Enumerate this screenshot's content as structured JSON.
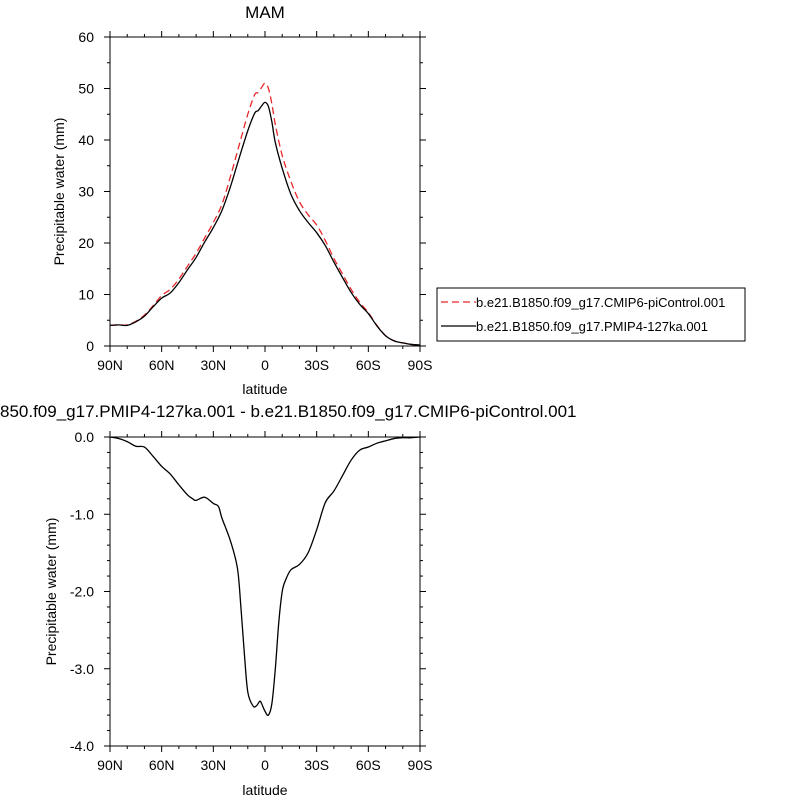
{
  "chart_data": [
    {
      "type": "line",
      "title": "MAM",
      "xlabel": "latitude",
      "ylabel": "Precipitable water (mm)",
      "xlim": [
        90,
        -90
      ],
      "ylim": [
        0,
        60
      ],
      "grid": false,
      "legend_position": "right",
      "x_tick_values": [
        90,
        60,
        30,
        0,
        -30,
        -60,
        -90
      ],
      "x_tick_labels": [
        "90N",
        "60N",
        "30N",
        "0",
        "30S",
        "60S",
        "90S"
      ],
      "y_tick_values": [
        0,
        10,
        20,
        30,
        40,
        50,
        60
      ],
      "y_tick_labels": [
        "0",
        "10",
        "20",
        "30",
        "40",
        "50",
        "60"
      ],
      "series": [
        {
          "name": "b.e21.B1850.f09_g17.CMIP6-piControl.001",
          "color": "#e8282b",
          "dash": "dashed",
          "x": [
            90,
            85,
            80,
            75,
            70,
            65,
            60,
            55,
            50,
            45,
            40,
            35,
            30,
            25,
            20,
            15,
            10,
            6,
            4,
            2,
            0,
            -2,
            -4,
            -6,
            -10,
            -15,
            -20,
            -25,
            -30,
            -35,
            -40,
            -45,
            -50,
            -55,
            -60,
            -65,
            -70,
            -75,
            -80,
            -85,
            -90
          ],
          "y": [
            4.0,
            4.1,
            4.1,
            4.8,
            6.0,
            7.8,
            9.8,
            11.0,
            13.0,
            15.5,
            18.0,
            21.0,
            24.0,
            27.5,
            33.0,
            39.0,
            45.0,
            48.8,
            49.2,
            50.2,
            51.0,
            50.0,
            47.0,
            43.0,
            37.0,
            32.0,
            28.0,
            25.5,
            23.5,
            20.5,
            17.0,
            14.0,
            11.0,
            8.5,
            6.5,
            4.0,
            2.0,
            1.0,
            0.6,
            0.3,
            0.2
          ]
        },
        {
          "name": "b.e21.B1850.f09_g17.PMIP4-127ka.001",
          "color": "#000000",
          "dash": "solid",
          "x": [
            90,
            85,
            80,
            75,
            70,
            65,
            60,
            55,
            50,
            45,
            40,
            35,
            30,
            25,
            20,
            15,
            10,
            6,
            4,
            2,
            0,
            -2,
            -4,
            -6,
            -10,
            -15,
            -20,
            -25,
            -30,
            -35,
            -40,
            -45,
            -50,
            -55,
            -60,
            -65,
            -70,
            -75,
            -80,
            -85,
            -90
          ],
          "y": [
            4.0,
            4.1,
            4.0,
            4.7,
            5.8,
            7.6,
            9.3,
            10.3,
            12.3,
            14.8,
            17.2,
            20.2,
            23.0,
            26.3,
            31.0,
            36.5,
            41.8,
            45.2,
            45.7,
            46.6,
            47.3,
            46.5,
            43.5,
            39.5,
            34.5,
            29.5,
            26.3,
            24.0,
            22.0,
            19.5,
            16.3,
            13.3,
            10.4,
            8.1,
            6.3,
            3.9,
            2.0,
            1.0,
            0.6,
            0.3,
            0.2
          ]
        }
      ]
    },
    {
      "type": "line",
      "title": "850.f09_g17.PMIP4-127ka.001 - b.e21.B1850.f09_g17.CMIP6-piControl.001",
      "xlabel": "latitude",
      "ylabel": "Precipitable water (mm)",
      "xlim": [
        90,
        -90
      ],
      "ylim": [
        -4.0,
        0.0
      ],
      "grid": false,
      "x_tick_values": [
        90,
        60,
        30,
        0,
        -30,
        -60,
        -90
      ],
      "x_tick_labels": [
        "90N",
        "60N",
        "30N",
        "0",
        "30S",
        "60S",
        "90S"
      ],
      "y_tick_values": [
        0.0,
        -1.0,
        -2.0,
        -3.0,
        -4.0
      ],
      "y_tick_labels": [
        "0.0",
        "-1.0",
        "-2.0",
        "-3.0",
        "-4.0"
      ],
      "series": [
        {
          "color": "#000000",
          "dash": "solid",
          "x": [
            90,
            85,
            80,
            75,
            70,
            65,
            60,
            55,
            50,
            45,
            42,
            40,
            35,
            30,
            27,
            25,
            20,
            16,
            14,
            12,
            10,
            7,
            5,
            3,
            2,
            0,
            -2,
            -4,
            -6,
            -8,
            -10,
            -12,
            -15,
            -20,
            -25,
            -30,
            -35,
            -40,
            -45,
            -50,
            -55,
            -60,
            -65,
            -70,
            -75,
            -80,
            -85,
            -90
          ],
          "y": [
            0.0,
            -0.02,
            -0.06,
            -0.12,
            -0.13,
            -0.25,
            -0.38,
            -0.48,
            -0.62,
            -0.75,
            -0.8,
            -0.82,
            -0.78,
            -0.86,
            -0.9,
            -1.05,
            -1.35,
            -1.7,
            -2.2,
            -2.8,
            -3.3,
            -3.48,
            -3.48,
            -3.42,
            -3.45,
            -3.55,
            -3.6,
            -3.45,
            -3.0,
            -2.4,
            -2.0,
            -1.85,
            -1.72,
            -1.65,
            -1.5,
            -1.2,
            -0.85,
            -0.7,
            -0.5,
            -0.3,
            -0.17,
            -0.13,
            -0.08,
            -0.05,
            -0.02,
            -0.01,
            -0.01,
            0.0
          ]
        }
      ]
    }
  ]
}
